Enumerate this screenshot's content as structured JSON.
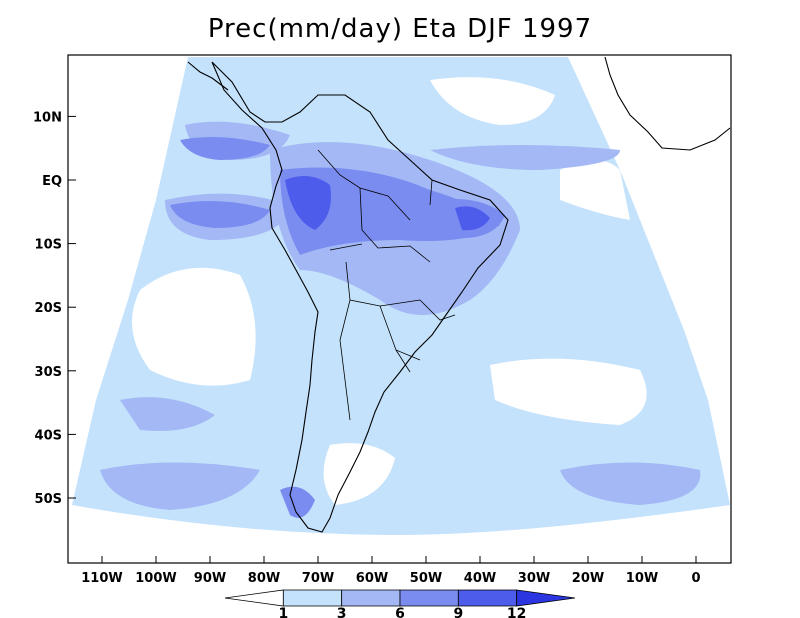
{
  "title": "Prec(mm/day) Eta DJF 1997",
  "lat_ticks": [
    {
      "label": "10N",
      "lat": 10
    },
    {
      "label": "EQ",
      "lat": 0
    },
    {
      "label": "10S",
      "lat": -10
    },
    {
      "label": "20S",
      "lat": -20
    },
    {
      "label": "30S",
      "lat": -30
    },
    {
      "label": "40S",
      "lat": -40
    },
    {
      "label": "50S",
      "lat": -50
    }
  ],
  "lon_ticks": [
    {
      "label": "110W",
      "lon": -110
    },
    {
      "label": "100W",
      "lon": -100
    },
    {
      "label": "90W",
      "lon": -90
    },
    {
      "label": "80W",
      "lon": -80
    },
    {
      "label": "70W",
      "lon": -70
    },
    {
      "label": "60W",
      "lon": -60
    },
    {
      "label": "50W",
      "lon": -50
    },
    {
      "label": "40W",
      "lon": -40
    },
    {
      "label": "30W",
      "lon": -30
    },
    {
      "label": "20W",
      "lon": -20
    },
    {
      "label": "10W",
      "lon": -10
    },
    {
      "label": "0",
      "lon": 0
    }
  ],
  "colorbar": {
    "levels": [
      "1",
      "3",
      "6",
      "9",
      "12"
    ],
    "colors": [
      "#ffffff",
      "#c4e2fc",
      "#a3b8f5",
      "#7a8cf0",
      "#4e5cec",
      "#2c36e0"
    ]
  },
  "field_colors": {
    "domain": "#c4e2fc",
    "mid": "#a3b8f5",
    "high": "#7a8cf0",
    "very_high": "#4e5cec"
  }
}
